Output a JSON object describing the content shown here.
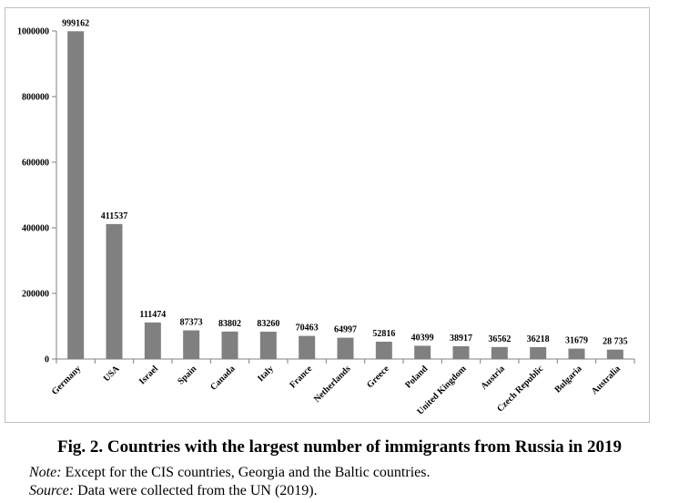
{
  "chart_data": {
    "type": "bar",
    "title": "",
    "xlabel": "",
    "ylabel": "",
    "categories": [
      "Germany",
      "USA",
      "Israel",
      "Spain",
      "Canada",
      "Italy",
      "France",
      "Netherlands",
      "Greece",
      "Poland",
      "United Kingdom",
      "Austria",
      "Czech Republic",
      "Bulgaria",
      "Australia"
    ],
    "values": [
      999162,
      411537,
      111474,
      87373,
      83802,
      83260,
      70463,
      64997,
      52816,
      40399,
      38917,
      36562,
      36218,
      31679,
      28735
    ],
    "data_labels": [
      "999162",
      "411537",
      "111474",
      "87373",
      "83802",
      "83260",
      "70463",
      "64997",
      "52816",
      "40399",
      "38917",
      "36562",
      "36218",
      "31679",
      "28 735"
    ],
    "yticks": [
      0,
      200000,
      400000,
      600000,
      800000,
      1000000
    ],
    "ytick_labels": [
      "0",
      "200000",
      "400000",
      "600000",
      "800000",
      "1000000"
    ],
    "ylim": [
      0,
      1000000
    ],
    "grid": false,
    "bar_color": "#808080"
  },
  "caption": {
    "title": "Fig. 2. Countries with the largest number of immigrants from Russia in 2019",
    "note_label": "Note:",
    "note_text": " Except for the CIS countries, Georgia and the Baltic countries.",
    "source_label": "Source:",
    "source_text": " Data were collected from the UN (2019)."
  }
}
